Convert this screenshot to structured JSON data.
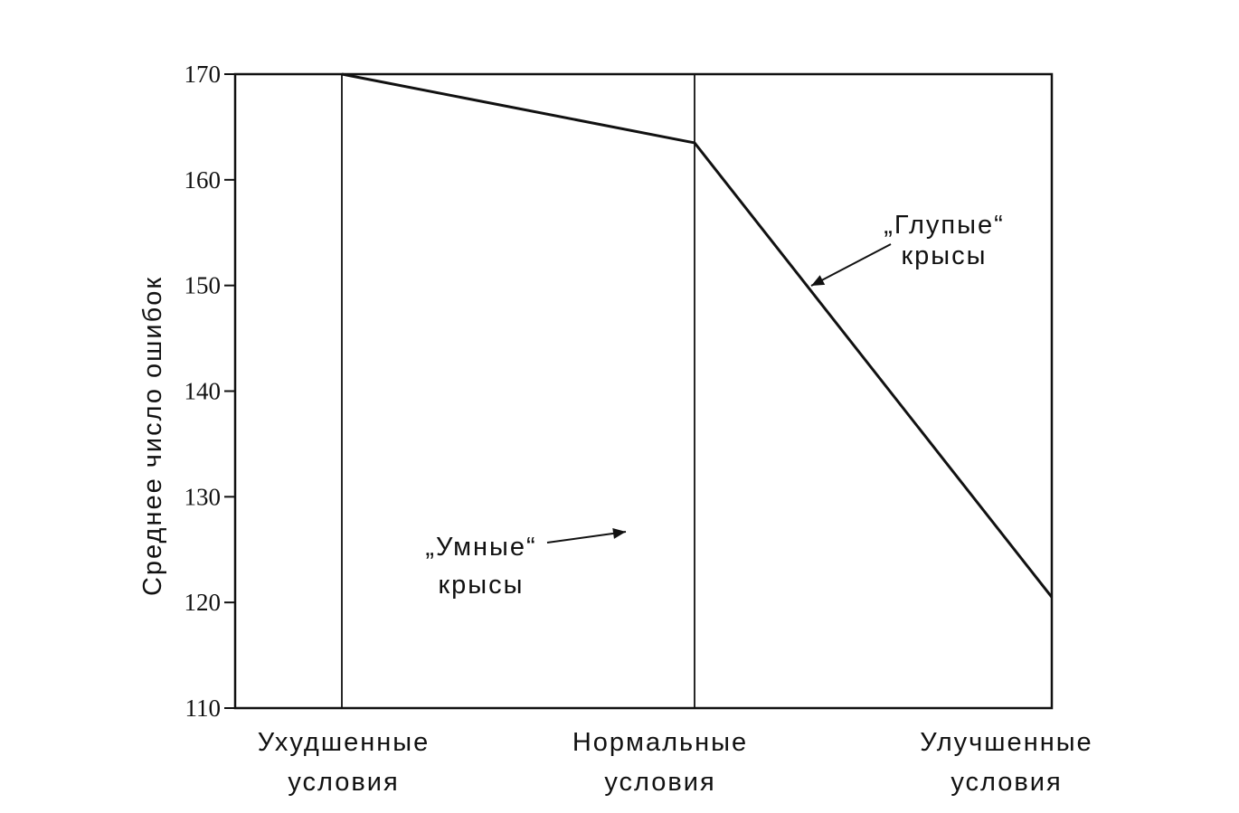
{
  "chart_data": {
    "type": "line",
    "title": "",
    "xlabel": "",
    "ylabel": "Среднее число ошибок",
    "ylim": [
      110,
      170
    ],
    "yticks": [
      110,
      120,
      130,
      140,
      150,
      160,
      170
    ],
    "grid": false,
    "categories": [
      [
        "Ухудшенные",
        "условия"
      ],
      [
        "Нормальные",
        "условия"
      ],
      [
        "Улучшенные",
        "условия"
      ]
    ],
    "series": [
      {
        "name": "„Глупые“ крысы",
        "values": [
          170,
          163.5,
          120.5
        ],
        "color": "#111111"
      },
      {
        "name": "„Умные“ крысы",
        "values": [
          null,
          null,
          null
        ],
        "color": "#111111"
      }
    ],
    "annotations": [
      {
        "lines": [
          "„Глупые“",
          "крысы"
        ],
        "target_series": 0
      },
      {
        "lines": [
          "„Умные“",
          "крысы"
        ],
        "target_series": 1
      }
    ]
  }
}
